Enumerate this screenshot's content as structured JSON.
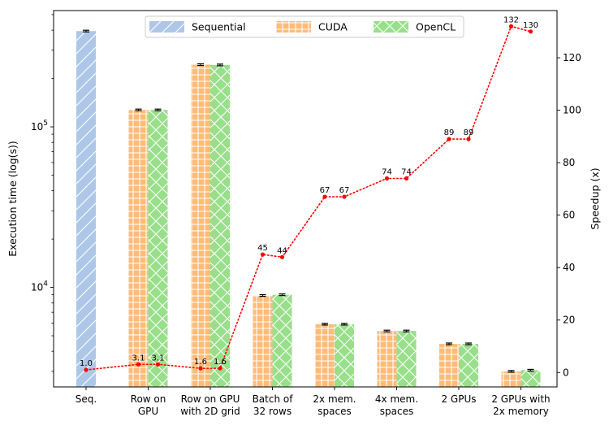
{
  "chart_data": {
    "type": "bar",
    "categories": [
      "Seq.",
      "Row on GPU",
      "Row on GPU with 2D grid",
      "Batch of 32 rows",
      "2x mem. spaces",
      "4x mem. spaces",
      "2 GPUs",
      "2 GPUs with 2x memory"
    ],
    "category_lines": [
      [
        "Seq."
      ],
      [
        "Row on",
        "GPU"
      ],
      [
        "Row on GPU",
        "with 2D grid"
      ],
      [
        "Batch of",
        "32 rows"
      ],
      [
        "2x mem.",
        "spaces"
      ],
      [
        "4x mem.",
        "spaces"
      ],
      [
        "2 GPUs"
      ],
      [
        "2 GPUs with",
        "2x memory"
      ]
    ],
    "series": [
      {
        "name": "Sequential",
        "color": "#aec7e8",
        "hatch": "diagonal",
        "values": [
          395000,
          null,
          null,
          null,
          null,
          null,
          null,
          null
        ]
      },
      {
        "name": "CUDA",
        "color": "#ffbb78",
        "hatch": "grid",
        "values": [
          null,
          127500,
          244000,
          8900,
          5900,
          5350,
          4450,
          3000
        ]
      },
      {
        "name": "OpenCL",
        "color": "#98df8a",
        "hatch": "cross",
        "values": [
          null,
          127500,
          243000,
          9000,
          5900,
          5350,
          4450,
          3050
        ]
      }
    ],
    "speedup": {
      "color": "#ff0000",
      "points": [
        {
          "cat": 0,
          "series": "Sequential",
          "value": 1.0,
          "label": "1.0"
        },
        {
          "cat": 1,
          "series": "CUDA",
          "value": 3.1,
          "label": "3.1"
        },
        {
          "cat": 1,
          "series": "OpenCL",
          "value": 3.1,
          "label": "3.1"
        },
        {
          "cat": 2,
          "series": "CUDA",
          "value": 1.6,
          "label": "1.6"
        },
        {
          "cat": 2,
          "series": "OpenCL",
          "value": 1.6,
          "label": "1.6"
        },
        {
          "cat": 3,
          "series": "CUDA",
          "value": 45,
          "label": "45"
        },
        {
          "cat": 3,
          "series": "OpenCL",
          "value": 44,
          "label": "44"
        },
        {
          "cat": 4,
          "series": "CUDA",
          "value": 67,
          "label": "67"
        },
        {
          "cat": 4,
          "series": "OpenCL",
          "value": 67,
          "label": "67"
        },
        {
          "cat": 5,
          "series": "CUDA",
          "value": 74,
          "label": "74"
        },
        {
          "cat": 5,
          "series": "OpenCL",
          "value": 74,
          "label": "74"
        },
        {
          "cat": 6,
          "series": "CUDA",
          "value": 89,
          "label": "89"
        },
        {
          "cat": 6,
          "series": "OpenCL",
          "value": 89,
          "label": "89"
        },
        {
          "cat": 7,
          "series": "CUDA",
          "value": 132,
          "label": "132"
        },
        {
          "cat": 7,
          "series": "OpenCL",
          "value": 130,
          "label": "130"
        }
      ]
    },
    "ylabel": "Execution time (log(s))",
    "y2label": "Speedup (x)",
    "yscale": "log",
    "ylim": [
      2400,
      530000
    ],
    "y_major_ticks": [
      {
        "value": 10000,
        "base": "10",
        "exp": "4"
      },
      {
        "value": 100000,
        "base": "10",
        "exp": "5"
      }
    ],
    "y2lim": [
      -5.5,
      138
    ],
    "y2_ticks": [
      "0",
      "20",
      "40",
      "60",
      "80",
      "100",
      "120"
    ],
    "legend_position": "top-center",
    "grid": false
  }
}
